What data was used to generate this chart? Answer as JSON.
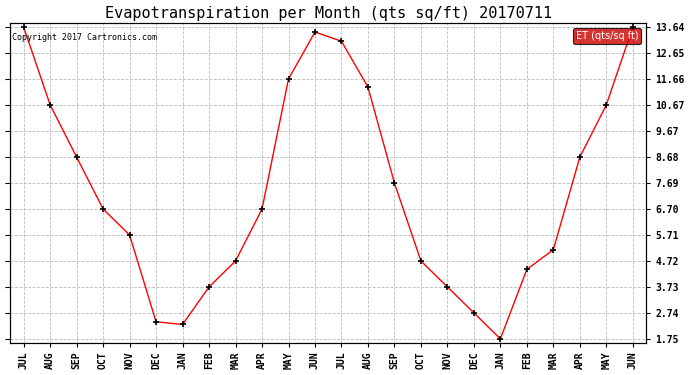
{
  "title": "Evapotranspiration per Month (qts sq/ft) 20170711",
  "copyright_text": "Copyright 2017 Cartronics.com",
  "legend_label": "ET (qts/sq ft)",
  "months": [
    "JUL",
    "AUG",
    "SEP",
    "OCT",
    "NOV",
    "DEC",
    "JAN",
    "FEB",
    "MAR",
    "APR",
    "MAY",
    "JUN",
    "JUL",
    "AUG",
    "SEP",
    "OCT",
    "NOV",
    "DEC",
    "JAN",
    "FEB",
    "MAR",
    "APR",
    "MAY",
    "JUN"
  ],
  "values": [
    13.64,
    10.67,
    8.68,
    6.7,
    5.71,
    2.4,
    2.3,
    3.73,
    4.72,
    6.7,
    11.66,
    13.45,
    13.1,
    11.35,
    7.69,
    4.72,
    3.73,
    2.74,
    1.75,
    4.4,
    5.15,
    8.68,
    10.67,
    13.64
  ],
  "line_color": "red",
  "marker_color": "black",
  "grid_color": "#bbbbbb",
  "background_color": "white",
  "ylim_min": 1.75,
  "ylim_max": 13.64,
  "yticks": [
    1.75,
    2.74,
    3.73,
    4.72,
    5.71,
    6.7,
    7.69,
    8.68,
    9.67,
    10.67,
    11.66,
    12.65,
    13.64
  ],
  "title_fontsize": 11,
  "tick_fontsize": 7,
  "copyright_fontsize": 6,
  "legend_fontsize": 7,
  "legend_bg": "#cc0000",
  "legend_text_color": "white",
  "fig_width": 6.9,
  "fig_height": 3.75,
  "dpi": 100
}
